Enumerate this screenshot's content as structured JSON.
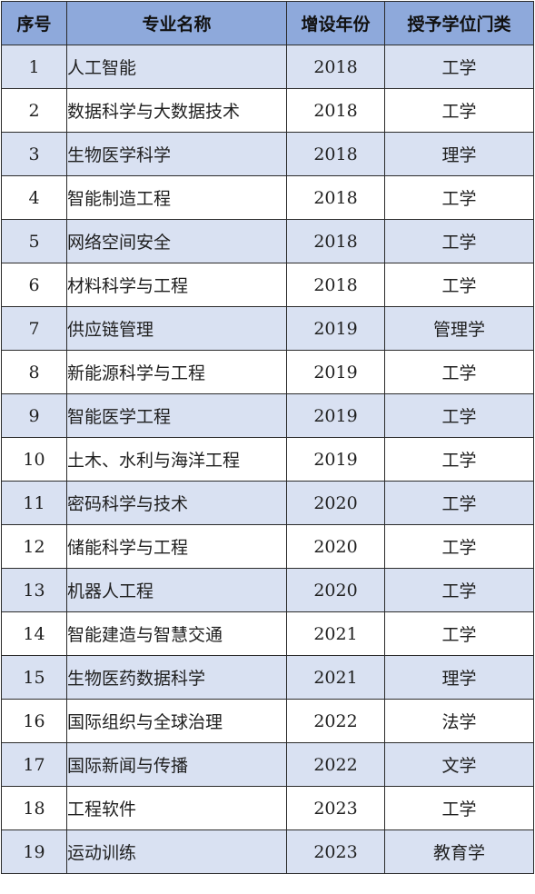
{
  "table": {
    "headers": [
      "序号",
      "专业名称",
      "增设年份",
      "授予学位门类"
    ],
    "rows": [
      {
        "idx": "1",
        "name": "人工智能",
        "year": "2018",
        "cat": "工学"
      },
      {
        "idx": "2",
        "name": "数据科学与大数据技术",
        "year": "2018",
        "cat": "工学"
      },
      {
        "idx": "3",
        "name": "生物医学科学",
        "year": "2018",
        "cat": "理学"
      },
      {
        "idx": "4",
        "name": "智能制造工程",
        "year": "2018",
        "cat": "工学"
      },
      {
        "idx": "5",
        "name": "网络空间安全",
        "year": "2018",
        "cat": "工学"
      },
      {
        "idx": "6",
        "name": "材料科学与工程",
        "year": "2018",
        "cat": "工学"
      },
      {
        "idx": "7",
        "name": "供应链管理",
        "year": "2019",
        "cat": "管理学"
      },
      {
        "idx": "8",
        "name": "新能源科学与工程",
        "year": "2019",
        "cat": "工学"
      },
      {
        "idx": "9",
        "name": "智能医学工程",
        "year": "2019",
        "cat": "工学"
      },
      {
        "idx": "10",
        "name": "土木、水利与海洋工程",
        "year": "2019",
        "cat": "工学"
      },
      {
        "idx": "11",
        "name": "密码科学与技术",
        "year": "2020",
        "cat": "工学"
      },
      {
        "idx": "12",
        "name": "储能科学与工程",
        "year": "2020",
        "cat": "工学"
      },
      {
        "idx": "13",
        "name": "机器人工程",
        "year": "2020",
        "cat": "工学"
      },
      {
        "idx": "14",
        "name": "智能建造与智慧交通",
        "year": "2021",
        "cat": "工学"
      },
      {
        "idx": "15",
        "name": "生物医药数据科学",
        "year": "2021",
        "cat": "理学"
      },
      {
        "idx": "16",
        "name": "国际组织与全球治理",
        "year": "2022",
        "cat": "法学"
      },
      {
        "idx": "17",
        "name": "国际新闻与传播",
        "year": "2022",
        "cat": "文学"
      },
      {
        "idx": "18",
        "name": "工程软件",
        "year": "2023",
        "cat": "工学"
      },
      {
        "idx": "19",
        "name": "运动训练",
        "year": "2023",
        "cat": "教育学"
      }
    ]
  },
  "colors": {
    "header_bg": "#8ea9db",
    "row_alt_bg": "#d9e1f2",
    "row_bg": "#ffffff",
    "border": "#2b2b2b"
  }
}
